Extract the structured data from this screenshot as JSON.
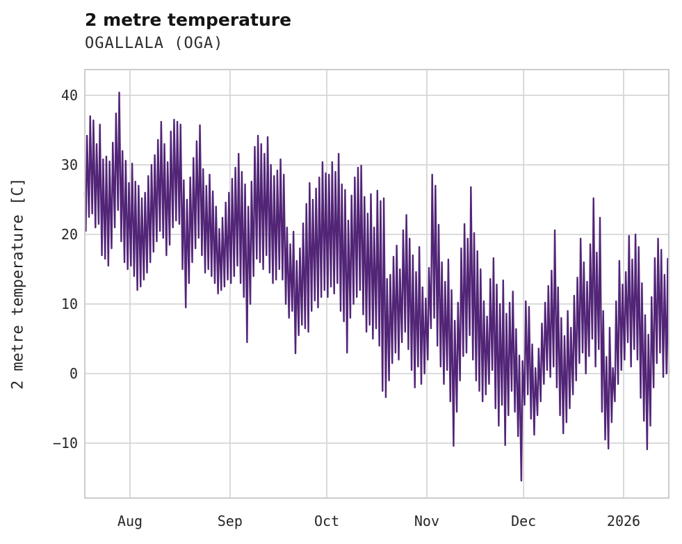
{
  "chart": {
    "title": "2 metre temperature",
    "subtitle": "OGALLALA (OGA)",
    "ylabel": "2 metre temperature [C]"
  },
  "chart_data": {
    "type": "line",
    "title": "2 metre temperature",
    "subtitle": "OGALLALA (OGA)",
    "xlabel": "",
    "ylabel": "2 metre temperature [C]",
    "legend": "none",
    "grid": "on",
    "line_color": "#522577",
    "grid_color": "#d6d6d6",
    "spine_color": "#cccccc",
    "background_color": "#ffffff",
    "ylim": [
      -17.9,
      43.7
    ],
    "total_days": 181,
    "start_date": "2025-07-18",
    "y_ticks": [
      {
        "label": "40",
        "value": 40
      },
      {
        "label": "30",
        "value": 30
      },
      {
        "label": "20",
        "value": 20
      },
      {
        "label": "10",
        "value": 10
      },
      {
        "label": "0",
        "value": 0
      },
      {
        "label": "−10",
        "value": -10
      }
    ],
    "x_ticks": [
      {
        "label": "Aug",
        "day": 14
      },
      {
        "label": "Sep",
        "day": 45
      },
      {
        "label": "Oct",
        "day": 75
      },
      {
        "label": "Nov",
        "day": 106
      },
      {
        "label": "Dec",
        "day": 136
      },
      {
        "label": "2026",
        "day": 167
      }
    ],
    "sampling_note": "hourly trace summarized as daily minimum (early morning) and daily maximum (afternoon), degrees C",
    "start_value": 26.0,
    "end_value": 0.0,
    "daily_max": [
      34.2,
      37.0,
      36.4,
      33.0,
      35.8,
      30.8,
      31.2,
      30.5,
      33.2,
      37.4,
      40.4,
      32.0,
      30.6,
      27.4,
      30.2,
      27.6,
      27.0,
      25.2,
      26.0,
      28.4,
      30.0,
      31.4,
      33.6,
      36.2,
      33.0,
      30.4,
      34.8,
      36.5,
      36.2,
      35.8,
      27.8,
      25.0,
      28.2,
      31.0,
      33.4,
      35.7,
      29.4,
      27.0,
      28.6,
      26.2,
      24.0,
      20.8,
      22.4,
      24.6,
      26.0,
      28.0,
      29.6,
      31.6,
      29.0,
      27.2,
      24.0,
      27.6,
      32.6,
      34.2,
      33.0,
      31.6,
      34.0,
      30.0,
      28.4,
      29.2,
      30.8,
      28.6,
      21.0,
      18.6,
      20.4,
      16.2,
      18.0,
      21.6,
      24.4,
      27.4,
      25.0,
      26.6,
      28.2,
      30.4,
      28.8,
      28.6,
      30.4,
      29.0,
      31.6,
      27.2,
      26.4,
      22.0,
      25.6,
      28.2,
      29.6,
      29.9,
      25.4,
      23.0,
      25.8,
      21.0,
      26.3,
      24.8,
      25.2,
      13.6,
      14.2,
      16.8,
      18.4,
      15.0,
      20.6,
      22.8,
      19.4,
      17.0,
      14.6,
      18.2,
      12.4,
      10.8,
      15.2,
      28.6,
      27.0,
      21.4,
      16.0,
      13.2,
      16.4,
      12.0,
      7.6,
      10.2,
      18.0,
      21.5,
      19.4,
      26.8,
      20.2,
      17.6,
      15.0,
      10.4,
      8.2,
      13.6,
      16.6,
      12.8,
      10.0,
      13.4,
      8.6,
      10.2,
      11.8,
      6.4,
      2.6,
      1.8,
      10.4,
      9.6,
      4.2,
      0.8,
      3.6,
      7.2,
      10.2,
      12.6,
      14.8,
      20.6,
      12.4,
      8.0,
      5.4,
      9.0,
      6.6,
      11.2,
      13.8,
      19.4,
      16.0,
      13.2,
      18.6,
      25.2,
      17.4,
      22.4,
      9.0,
      2.4,
      6.6,
      0.8,
      10.4,
      16.2,
      12.8,
      14.6,
      19.8,
      16.4,
      20.0,
      18.2,
      13.0,
      8.4,
      5.6,
      11.0,
      16.6,
      19.4,
      17.8,
      14.2,
      16.5
    ],
    "daily_min": [
      20.5,
      22.5,
      23.0,
      21.0,
      21.5,
      17.0,
      16.5,
      15.5,
      18.0,
      21.0,
      23.5,
      19.0,
      16.0,
      15.0,
      15.5,
      14.0,
      12.0,
      12.5,
      13.5,
      14.5,
      16.0,
      17.5,
      19.0,
      20.5,
      19.5,
      17.0,
      18.5,
      21.0,
      22.0,
      21.5,
      15.0,
      9.5,
      13.0,
      16.0,
      18.0,
      19.5,
      17.0,
      14.5,
      15.0,
      14.0,
      13.0,
      11.5,
      12.0,
      12.5,
      13.5,
      13.0,
      14.0,
      15.5,
      13.0,
      11.0,
      4.5,
      10.0,
      14.0,
      16.5,
      16.0,
      15.0,
      17.0,
      14.5,
      13.0,
      13.5,
      15.0,
      13.5,
      10.0,
      8.0,
      9.0,
      2.9,
      5.5,
      7.0,
      6.5,
      6.0,
      9.0,
      10.5,
      9.5,
      11.0,
      12.0,
      11.0,
      12.5,
      11.5,
      13.0,
      9.0,
      7.5,
      3.0,
      8.0,
      10.0,
      11.0,
      12.0,
      8.5,
      6.0,
      7.0,
      5.0,
      6.5,
      4.0,
      -2.5,
      -3.4,
      -1.0,
      1.5,
      3.0,
      2.0,
      4.5,
      6.0,
      3.5,
      0.5,
      -2.0,
      1.0,
      -1.5,
      0.0,
      2.0,
      6.5,
      8.0,
      4.0,
      1.0,
      -1.5,
      0.5,
      -4.0,
      -10.4,
      -5.5,
      -1.0,
      2.5,
      3.0,
      5.5,
      2.0,
      -1.0,
      -2.5,
      -4.0,
      -3.0,
      -1.5,
      0.5,
      -5.0,
      -7.5,
      -4.5,
      -10.3,
      -6.0,
      -2.5,
      -5.5,
      -9.0,
      -15.4,
      -4.5,
      -3.0,
      -6.5,
      -8.8,
      -6.0,
      -4.0,
      -1.5,
      0.5,
      -0.5,
      1.0,
      -2.0,
      -6.0,
      -8.6,
      -7.0,
      -5.0,
      -3.0,
      -1.0,
      1.5,
      3.0,
      0.0,
      2.5,
      5.0,
      1.0,
      3.5,
      -5.5,
      -9.5,
      -10.8,
      -7.0,
      -4.0,
      -1.5,
      0.5,
      2.0,
      4.5,
      1.0,
      3.5,
      2.0,
      -3.5,
      -6.8,
      -10.9,
      -7.5,
      -2.0,
      1.5,
      3.0,
      -0.5,
      0.0
    ]
  }
}
